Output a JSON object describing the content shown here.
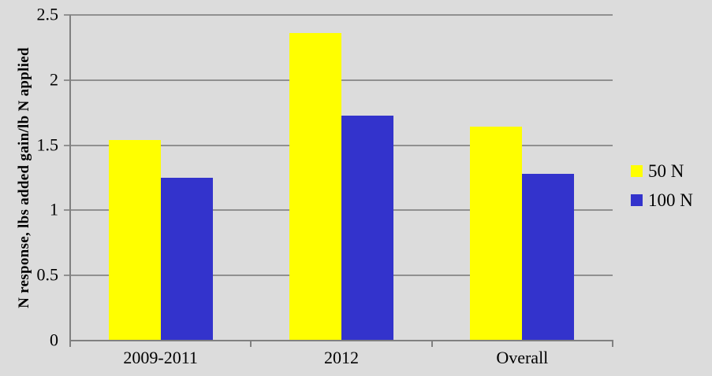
{
  "background_color": "#DCDCDC",
  "chart_data": {
    "type": "bar",
    "title": "",
    "xlabel": "",
    "ylabel": "N response, lbs added gain/lb N applied",
    "categories": [
      "2009-2011",
      "2012",
      "Overall"
    ],
    "series": [
      {
        "name": "50 N",
        "color": "#FFFF00",
        "values": [
          1.54,
          2.36,
          1.64
        ]
      },
      {
        "name": "100 N",
        "color": "#3333CC",
        "values": [
          1.25,
          1.73,
          1.28
        ]
      }
    ],
    "ylim": [
      0,
      2.5
    ],
    "ytick_step": 0.5,
    "ytick_labels": [
      "0",
      "0.5",
      "1",
      "1.5",
      "2",
      "2.5"
    ],
    "grid": true,
    "legend_position": "right",
    "gridline_color": "#909090",
    "axis_color": "#808080",
    "text_color": "#000000"
  }
}
